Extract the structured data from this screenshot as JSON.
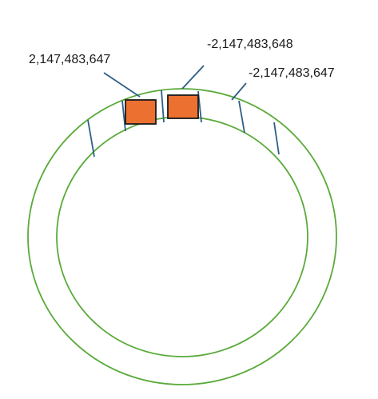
{
  "diagram": {
    "labels": {
      "left": "2,147,483,647",
      "top_right": "-2,147,483,648",
      "far_right": "-2,147,483,647"
    },
    "colors": {
      "ring": "#5aaa3a",
      "tick": "#2e5f86",
      "block_fill": "#ec7030",
      "block_stroke": "#1a1a1a",
      "text": "#1a1a1a"
    }
  }
}
